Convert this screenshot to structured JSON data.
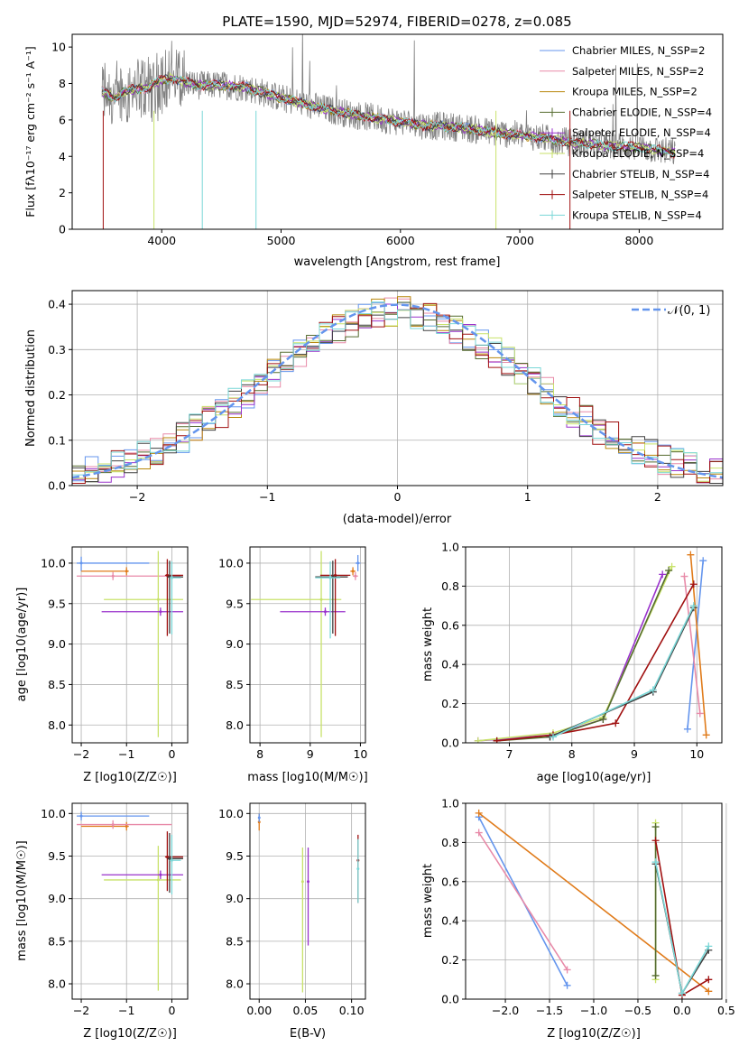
{
  "figure": {
    "title": "PLATE=1590, MJD=52974, FIBERID=0278, z=0.085"
  },
  "colors": {
    "chabrier_miles": "#6495ed",
    "salpeter_miles": "#e88aa8",
    "kroupa_miles": "#b8860b",
    "chabrier_elodie": "#556b2f",
    "salpeter_elodie": "#9932cc",
    "kroupa_elodie": "#c8e26a",
    "chabrier_stelib": "#404040",
    "salpeter_stelib": "#a01010",
    "kroupa_stelib": "#7ad7d7",
    "orange": "#e07b1a",
    "data_gray": "#808080",
    "gauss": "#6495ed"
  },
  "chart_data": [
    {
      "id": "spectrum",
      "type": "line",
      "title": "PLATE=1590, MJD=52974, FIBERID=0278, z=0.085",
      "xlabel": "wavelength [Angstrom, rest frame]",
      "ylabel": "Flux [fλ10⁻¹⁷ erg cm⁻² s⁻¹ A⁻¹]",
      "xlim": [
        3250,
        8700
      ],
      "ylim": [
        0,
        10.7
      ],
      "xticks": [
        "4000",
        "5000",
        "6000",
        "7000",
        "8000"
      ],
      "yticks": [
        "0",
        "2",
        "4",
        "6",
        "8",
        "10"
      ],
      "legend_position": "top-right",
      "legend": [
        "Chabrier MILES, N_SSP=2",
        "Salpeter MILES, N_SSP=2",
        "Kroupa MILES, N_SSP=2",
        "Chabrier ELODIE, N_SSP=4",
        "Salpeter ELODIE, N_SSP=4",
        "Kroupa ELODIE, N_SSP=4",
        "Chabrier STELIB, N_SSP=4",
        "Salpeter STELIB, N_SSP=4",
        "Kroupa STELIB, N_SSP=4"
      ],
      "continuum": {
        "x": [
          3500,
          3600,
          3700,
          3800,
          3900,
          4000,
          4100,
          4200,
          4300,
          4500,
          4700,
          5000,
          5300,
          5600,
          5900,
          6200,
          6500,
          6800,
          7100,
          7400,
          7700,
          8000,
          8300
        ],
        "y": [
          7.6,
          7.2,
          7.6,
          7.7,
          7.8,
          8.2,
          8.3,
          8.1,
          7.9,
          7.9,
          7.8,
          7.2,
          6.7,
          6.3,
          6.0,
          5.7,
          5.6,
          5.3,
          5.1,
          4.8,
          4.6,
          4.5,
          4.2
        ]
      }
    },
    {
      "id": "residuals",
      "type": "line",
      "xlabel": "(data-model)/error",
      "ylabel": "Normed distribution",
      "xlim": [
        -2.5,
        2.5
      ],
      "ylim": [
        0,
        0.43
      ],
      "xticks": [
        "-2",
        "-1",
        "0",
        "1",
        "2"
      ],
      "yticks": [
        "0.0",
        "0.1",
        "0.2",
        "0.3",
        "0.4"
      ],
      "legend": [
        "𝒩(0, 1)"
      ],
      "legend_position": "top-right",
      "grid": true
    },
    {
      "id": "age_vs_z",
      "type": "scatter",
      "xlabel": "Z [log10(Z/Z☉)]",
      "ylabel": "age  [log10(age/yr)]",
      "xlim": [
        -2.2,
        0.35
      ],
      "ylim": [
        7.78,
        10.2
      ],
      "xticks": [
        "-2",
        "-1",
        "0"
      ],
      "yticks": [
        "8.0",
        "8.5",
        "9.0",
        "9.5",
        "10.0"
      ],
      "grid": true,
      "points": [
        {
          "x": -2.0,
          "y": 10.0,
          "xerr": [
            0.1,
            1.5
          ],
          "yerr": [
            0.1,
            0.08
          ],
          "color": "chabrier_miles"
        },
        {
          "x": -1.0,
          "y": 9.9,
          "xerr": [
            1.0,
            0.05
          ],
          "yerr": [
            0.05,
            0.05
          ],
          "color": "orange"
        },
        {
          "x": -1.3,
          "y": 9.84,
          "xerr": [
            0.8,
            1.5
          ],
          "yerr": [
            0.05,
            0.05
          ],
          "color": "salpeter_miles"
        },
        {
          "x": -0.3,
          "y": 9.55,
          "xerr": [
            1.2,
            0.55
          ],
          "yerr": [
            1.7,
            0.6
          ],
          "color": "kroupa_elodie"
        },
        {
          "x": -0.25,
          "y": 9.4,
          "xerr": [
            1.3,
            0.5
          ],
          "yerr": [
            0.05,
            0.05
          ],
          "color": "salpeter_elodie"
        },
        {
          "x": -0.1,
          "y": 9.85,
          "xerr": [
            0.05,
            0.35
          ],
          "yerr": [
            0.75,
            0.2
          ],
          "color": "salpeter_stelib"
        },
        {
          "x": -0.05,
          "y": 9.83,
          "xerr": [
            0.05,
            0.3
          ],
          "yerr": [
            0.7,
            0.2
          ],
          "color": "chabrier_stelib"
        },
        {
          "x": 0.0,
          "y": 9.82,
          "xerr": [
            0.05,
            0.2
          ],
          "yerr": [
            0.7,
            0.2
          ],
          "color": "kroupa_stelib"
        }
      ]
    },
    {
      "id": "age_vs_mass",
      "type": "scatter",
      "xlabel": "mass [log10(M/M☉)]",
      "xlim": [
        7.8,
        10.1
      ],
      "ylim": [
        7.78,
        10.2
      ],
      "xticks": [
        "8",
        "9",
        "10"
      ],
      "yticks": [
        "8.0",
        "8.5",
        "9.0",
        "9.5",
        "10.0"
      ],
      "grid": true,
      "points": [
        {
          "x": 9.95,
          "y": 10.0,
          "xerr": [
            0.05,
            0.05
          ],
          "yerr": [
            0.1,
            0.1
          ],
          "color": "chabrier_miles"
        },
        {
          "x": 9.85,
          "y": 9.9,
          "xerr": [
            0.05,
            0.05
          ],
          "yerr": [
            0.05,
            0.05
          ],
          "color": "orange"
        },
        {
          "x": 9.9,
          "y": 9.84,
          "xerr": [
            0.05,
            0.05
          ],
          "yerr": [
            0.05,
            0.05
          ],
          "color": "salpeter_miles"
        },
        {
          "x": 9.22,
          "y": 9.55,
          "xerr": [
            1.4,
            0.4
          ],
          "yerr": [
            1.7,
            0.6
          ],
          "color": "kroupa_elodie"
        },
        {
          "x": 9.3,
          "y": 9.4,
          "xerr": [
            0.9,
            0.4
          ],
          "yerr": [
            0.05,
            0.05
          ],
          "color": "salpeter_elodie"
        },
        {
          "x": 9.5,
          "y": 9.85,
          "xerr": [
            0.3,
            0.3
          ],
          "yerr": [
            0.75,
            0.2
          ],
          "color": "salpeter_stelib"
        },
        {
          "x": 9.45,
          "y": 9.83,
          "xerr": [
            0.35,
            0.3
          ],
          "yerr": [
            0.7,
            0.2
          ],
          "color": "chabrier_stelib"
        },
        {
          "x": 9.4,
          "y": 9.82,
          "xerr": [
            0.3,
            0.2
          ],
          "yerr": [
            0.75,
            0.2
          ],
          "color": "kroupa_stelib"
        }
      ]
    },
    {
      "id": "mass_weight_vs_age",
      "type": "line",
      "xlabel": "age  [log10(age/yr)]",
      "ylabel": "mass weight",
      "xlim": [
        6.3,
        10.4
      ],
      "ylim": [
        0,
        1.0
      ],
      "xticks": [
        "7",
        "8",
        "9",
        "10"
      ],
      "yticks": [
        "0.0",
        "0.2",
        "0.4",
        "0.6",
        "0.8",
        "1.0"
      ],
      "grid": true,
      "series": [
        {
          "color": "chabrier_miles",
          "x": [
            9.85,
            10.1
          ],
          "y": [
            0.07,
            0.93
          ]
        },
        {
          "color": "salpeter_miles",
          "x": [
            9.8,
            10.05
          ],
          "y": [
            0.85,
            0.15
          ]
        },
        {
          "color": "orange",
          "x": [
            9.9,
            10.15
          ],
          "y": [
            0.96,
            0.04
          ]
        },
        {
          "color": "salpeter_elodie",
          "x": [
            6.5,
            7.7,
            8.5,
            9.45
          ],
          "y": [
            0.01,
            0.04,
            0.12,
            0.86
          ]
        },
        {
          "color": "kroupa_elodie",
          "x": [
            6.5,
            7.7,
            8.5,
            9.6
          ],
          "y": [
            0.01,
            0.05,
            0.13,
            0.9
          ]
        },
        {
          "color": "chabrier_elodie",
          "x": [
            6.8,
            7.65,
            8.5,
            9.55
          ],
          "y": [
            0.01,
            0.03,
            0.12,
            0.88
          ]
        },
        {
          "color": "salpeter_stelib",
          "x": [
            6.8,
            7.7,
            8.7,
            9.95
          ],
          "y": [
            0.01,
            0.04,
            0.1,
            0.81
          ]
        },
        {
          "color": "chabrier_stelib",
          "x": [
            7.65,
            9.3,
            9.95
          ],
          "y": [
            0.03,
            0.26,
            0.69
          ]
        },
        {
          "color": "kroupa_stelib",
          "x": [
            7.7,
            9.3,
            9.95
          ],
          "y": [
            0.03,
            0.27,
            0.7
          ]
        }
      ]
    },
    {
      "id": "mass_vs_z",
      "type": "scatter",
      "xlabel": "Z [log10(Z/Z☉)]",
      "ylabel": "mass [log10(M/M☉)]",
      "xlim": [
        -2.2,
        0.35
      ],
      "ylim": [
        7.82,
        10.12
      ],
      "xticks": [
        "-2",
        "-1",
        "0"
      ],
      "yticks": [
        "8.0",
        "8.5",
        "9.0",
        "9.5",
        "10.0"
      ],
      "grid": true,
      "points": [
        {
          "x": -2.0,
          "y": 9.97,
          "xerr": [
            0.1,
            1.5
          ],
          "yerr": [
            0.05,
            0.05
          ],
          "color": "chabrier_miles"
        },
        {
          "x": -1.0,
          "y": 9.85,
          "xerr": [
            1.0,
            0.05
          ],
          "yerr": [
            0.05,
            0.05
          ],
          "color": "orange"
        },
        {
          "x": -1.3,
          "y": 9.87,
          "xerr": [
            0.8,
            1.3
          ],
          "yerr": [
            0.05,
            0.05
          ],
          "color": "salpeter_miles"
        },
        {
          "x": -0.3,
          "y": 9.22,
          "xerr": [
            1.2,
            0.5
          ],
          "yerr": [
            1.3,
            0.4
          ],
          "color": "kroupa_elodie"
        },
        {
          "x": -0.25,
          "y": 9.28,
          "xerr": [
            1.3,
            0.5
          ],
          "yerr": [
            0.05,
            0.05
          ],
          "color": "salpeter_elodie"
        },
        {
          "x": -0.1,
          "y": 9.49,
          "xerr": [
            0.05,
            0.35
          ],
          "yerr": [
            0.4,
            0.3
          ],
          "color": "salpeter_stelib"
        },
        {
          "x": -0.05,
          "y": 9.47,
          "xerr": [
            0.05,
            0.3
          ],
          "yerr": [
            0.4,
            0.3
          ],
          "color": "chabrier_stelib"
        },
        {
          "x": 0.0,
          "y": 9.45,
          "xerr": [
            0.05,
            0.2
          ],
          "yerr": [
            0.4,
            0.3
          ],
          "color": "kroupa_stelib"
        }
      ]
    },
    {
      "id": "mass_vs_ebv",
      "type": "scatter",
      "xlabel": "E(B-V)",
      "xlim": [
        -0.01,
        0.115
      ],
      "ylim": [
        7.82,
        10.12
      ],
      "xticks": [
        "0.00",
        "0.05",
        "0.10"
      ],
      "yticks": [
        "8.0",
        "8.5",
        "9.0",
        "9.5",
        "10.0"
      ],
      "grid": true,
      "points": [
        {
          "x": 0.0,
          "y": 9.9,
          "yerr": [
            0.1,
            0.1
          ],
          "color": "orange"
        },
        {
          "x": 0.0,
          "y": 9.95,
          "yerr": [
            0.05,
            0.05
          ],
          "color": "chabrier_miles"
        },
        {
          "x": 0.047,
          "y": 9.2,
          "yerr": [
            1.3,
            0.4
          ],
          "color": "kroupa_elodie"
        },
        {
          "x": 0.053,
          "y": 9.2,
          "yerr": [
            0.75,
            0.4
          ],
          "color": "salpeter_elodie"
        },
        {
          "x": 0.107,
          "y": 9.45,
          "yerr": [
            0.5,
            0.3
          ],
          "color": "salpeter_stelib"
        },
        {
          "x": 0.107,
          "y": 9.35,
          "yerr": [
            0.4,
            0.35
          ],
          "color": "kroupa_stelib"
        }
      ]
    },
    {
      "id": "mass_weight_vs_z",
      "type": "line",
      "xlabel": "Z [log10(Z/Z☉)]",
      "ylabel": "mass weight",
      "xlim": [
        -2.45,
        0.45
      ],
      "ylim": [
        0,
        1.0
      ],
      "xticks": [
        "-2.0",
        "-1.5",
        "-1.0",
        "-0.5",
        "0.0",
        "0.5"
      ],
      "yticks": [
        "0.0",
        "0.2",
        "0.4",
        "0.6",
        "0.8",
        "1.0"
      ],
      "grid": true,
      "series": [
        {
          "color": "chabrier_miles",
          "x": [
            -2.3,
            -1.3
          ],
          "y": [
            0.93,
            0.07
          ]
        },
        {
          "color": "salpeter_miles",
          "x": [
            -2.3,
            -1.3
          ],
          "y": [
            0.85,
            0.15
          ]
        },
        {
          "color": "orange",
          "x": [
            -2.3,
            0.3
          ],
          "y": [
            0.95,
            0.04
          ]
        },
        {
          "color": "kroupa_elodie",
          "x": [
            -0.3,
            -0.3
          ],
          "y": [
            0.9,
            0.1
          ]
        },
        {
          "color": "chabrier_elodie",
          "x": [
            -0.3,
            -0.3
          ],
          "y": [
            0.88,
            0.12
          ]
        },
        {
          "color": "salpeter_stelib",
          "x": [
            -0.3,
            0.0,
            0.3
          ],
          "y": [
            0.81,
            0.02,
            0.1
          ]
        },
        {
          "color": "chabrier_stelib",
          "x": [
            -0.3,
            0.0,
            0.3
          ],
          "y": [
            0.69,
            0.03,
            0.25
          ]
        },
        {
          "color": "kroupa_stelib",
          "x": [
            -0.3,
            0.0,
            0.3
          ],
          "y": [
            0.7,
            0.03,
            0.27
          ]
        }
      ]
    }
  ]
}
